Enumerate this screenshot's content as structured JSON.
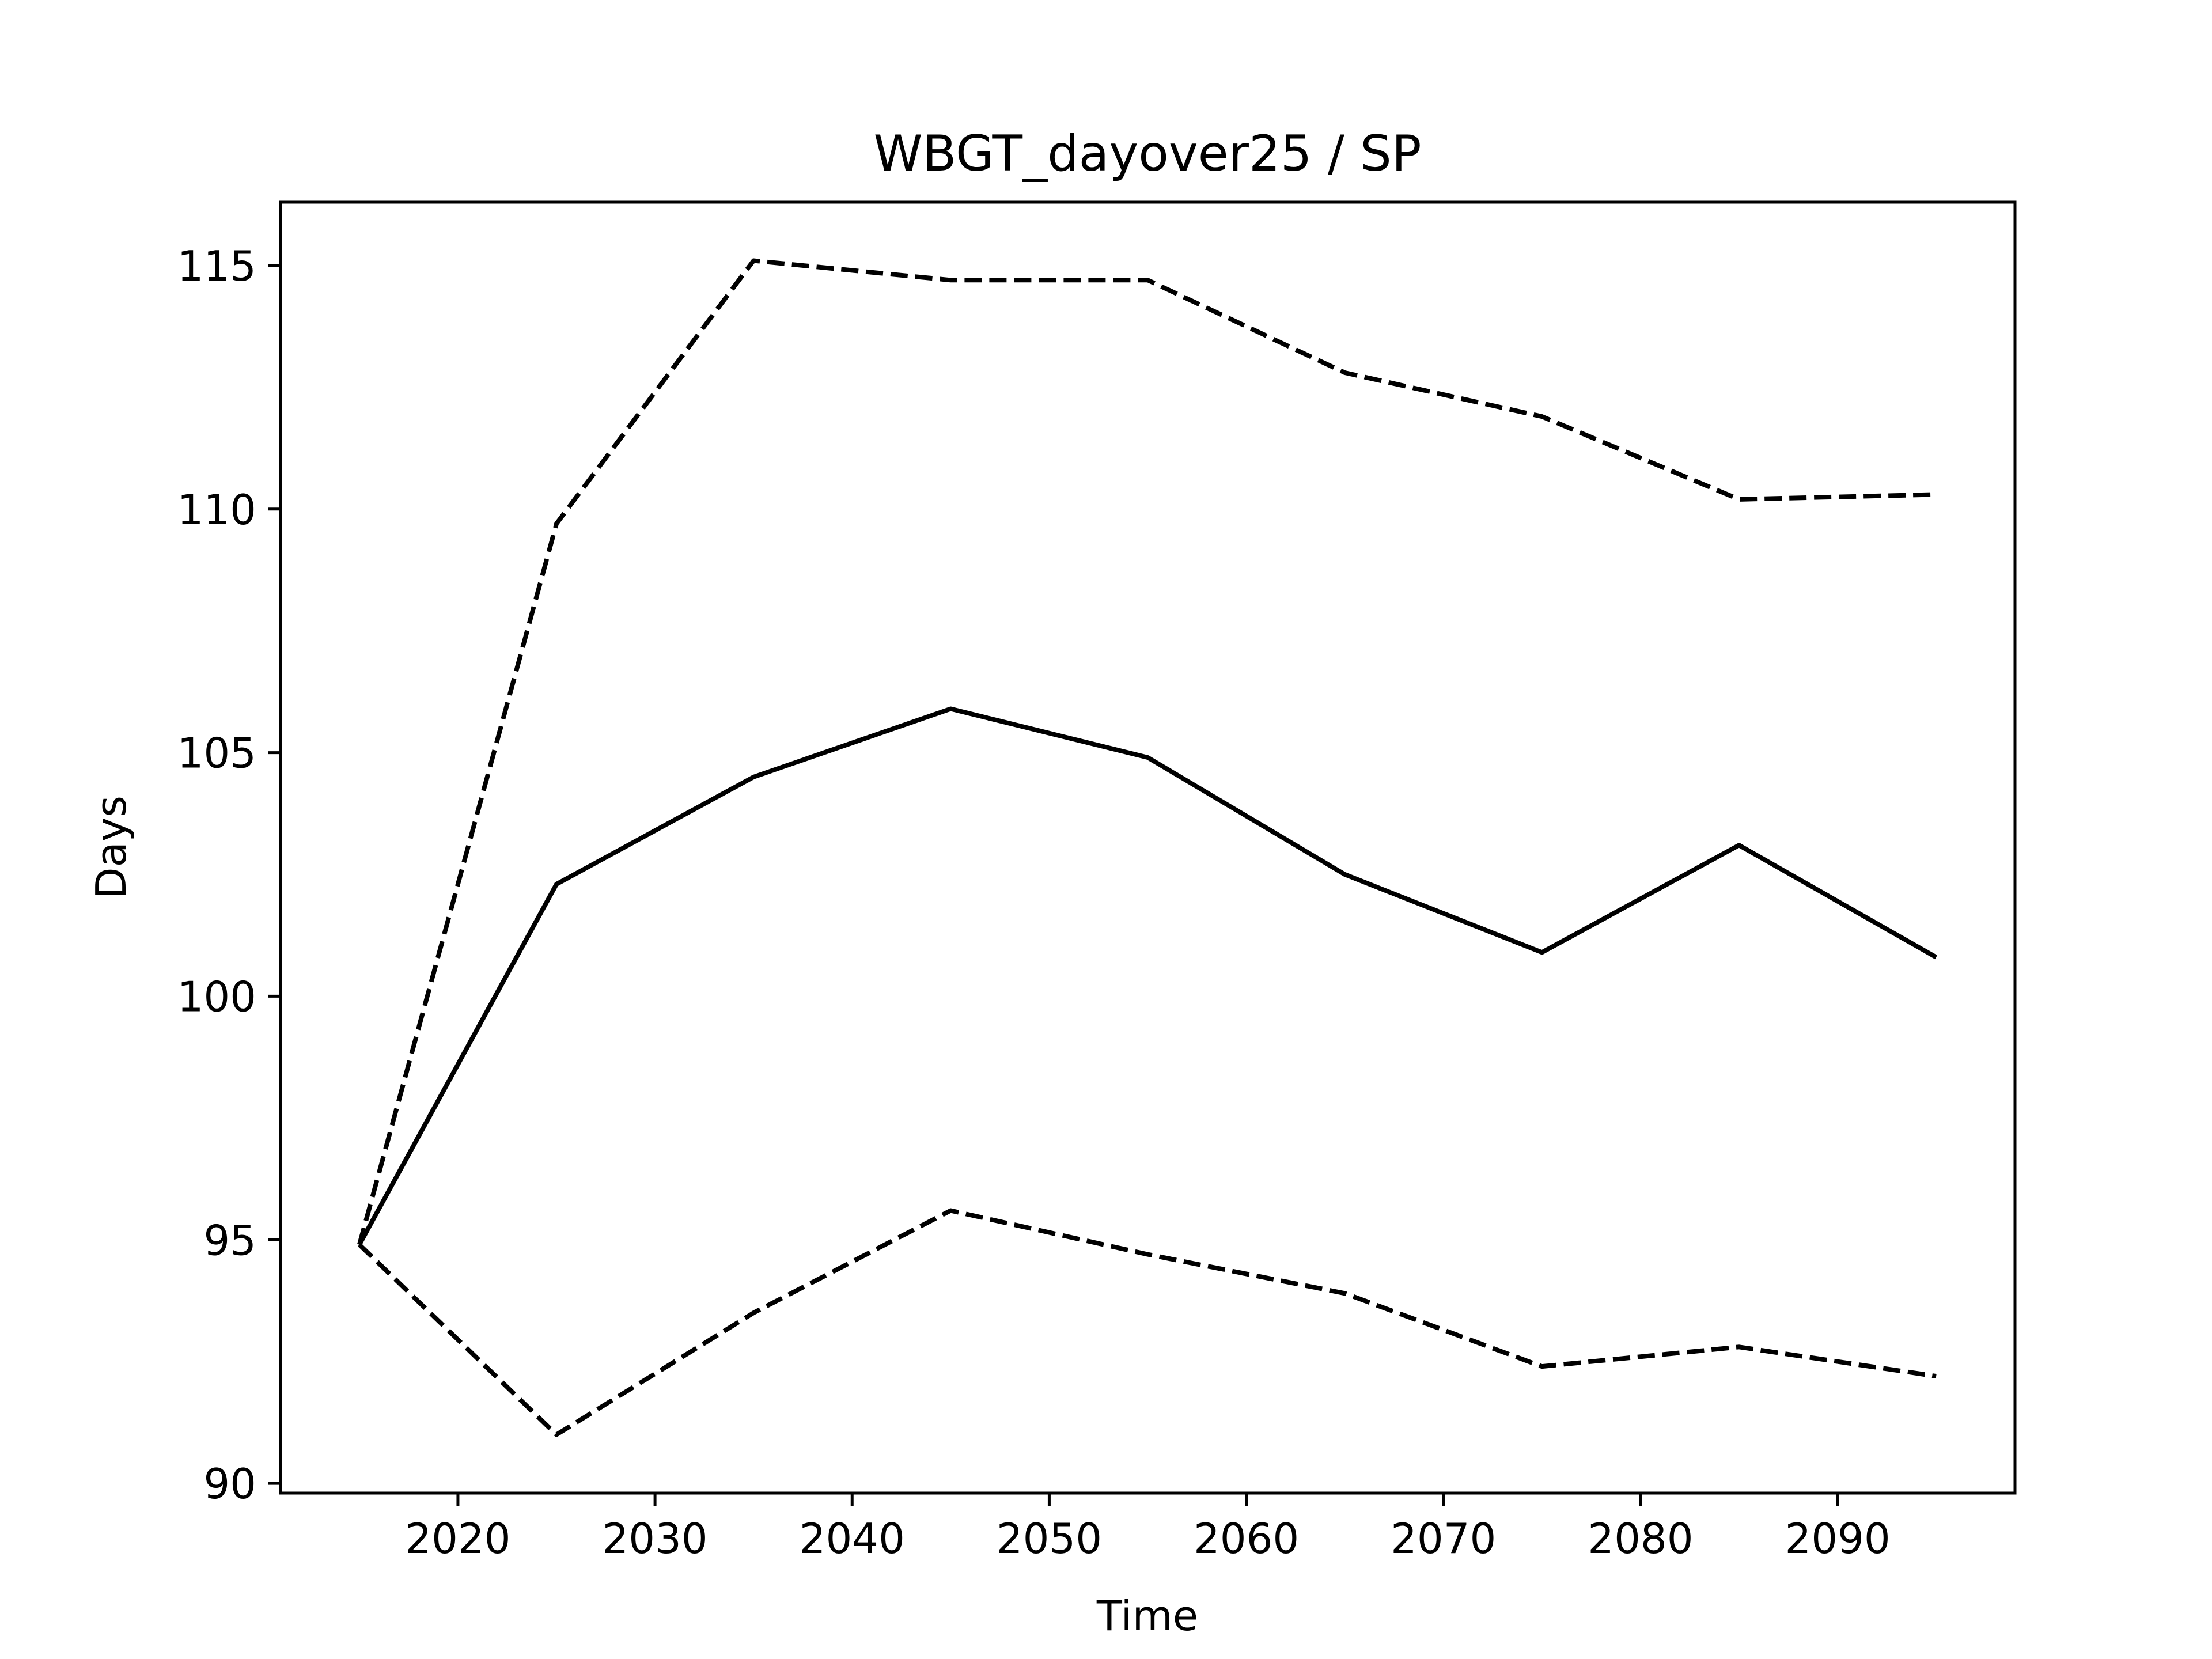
{
  "chart_data": {
    "type": "line",
    "title": "WBGT_dayover25 / SP",
    "xlabel": "Time",
    "ylabel": "Days",
    "x": [
      2015,
      2025,
      2035,
      2045,
      2055,
      2065,
      2075,
      2085,
      2095
    ],
    "xlim": [
      2011,
      2099
    ],
    "ylim": [
      89.8,
      116.3
    ],
    "xticks": [
      2020,
      2030,
      2040,
      2050,
      2060,
      2070,
      2080,
      2090
    ],
    "yticks": [
      90,
      95,
      100,
      105,
      110,
      115
    ],
    "grid": false,
    "series": [
      {
        "style": "solid",
        "color": "#000000",
        "values": [
          94.9,
          102.3,
          104.5,
          105.9,
          104.9,
          102.5,
          100.9,
          103.1,
          100.8
        ]
      },
      {
        "style": "dashed",
        "color": "#000000",
        "values": [
          94.9,
          109.7,
          115.1,
          114.7,
          114.7,
          112.8,
          111.9,
          110.2,
          110.3
        ]
      },
      {
        "style": "dashed",
        "color": "#000000",
        "values": [
          94.9,
          91.0,
          93.5,
          95.6,
          94.7,
          93.9,
          92.4,
          92.8,
          92.2
        ]
      }
    ]
  }
}
